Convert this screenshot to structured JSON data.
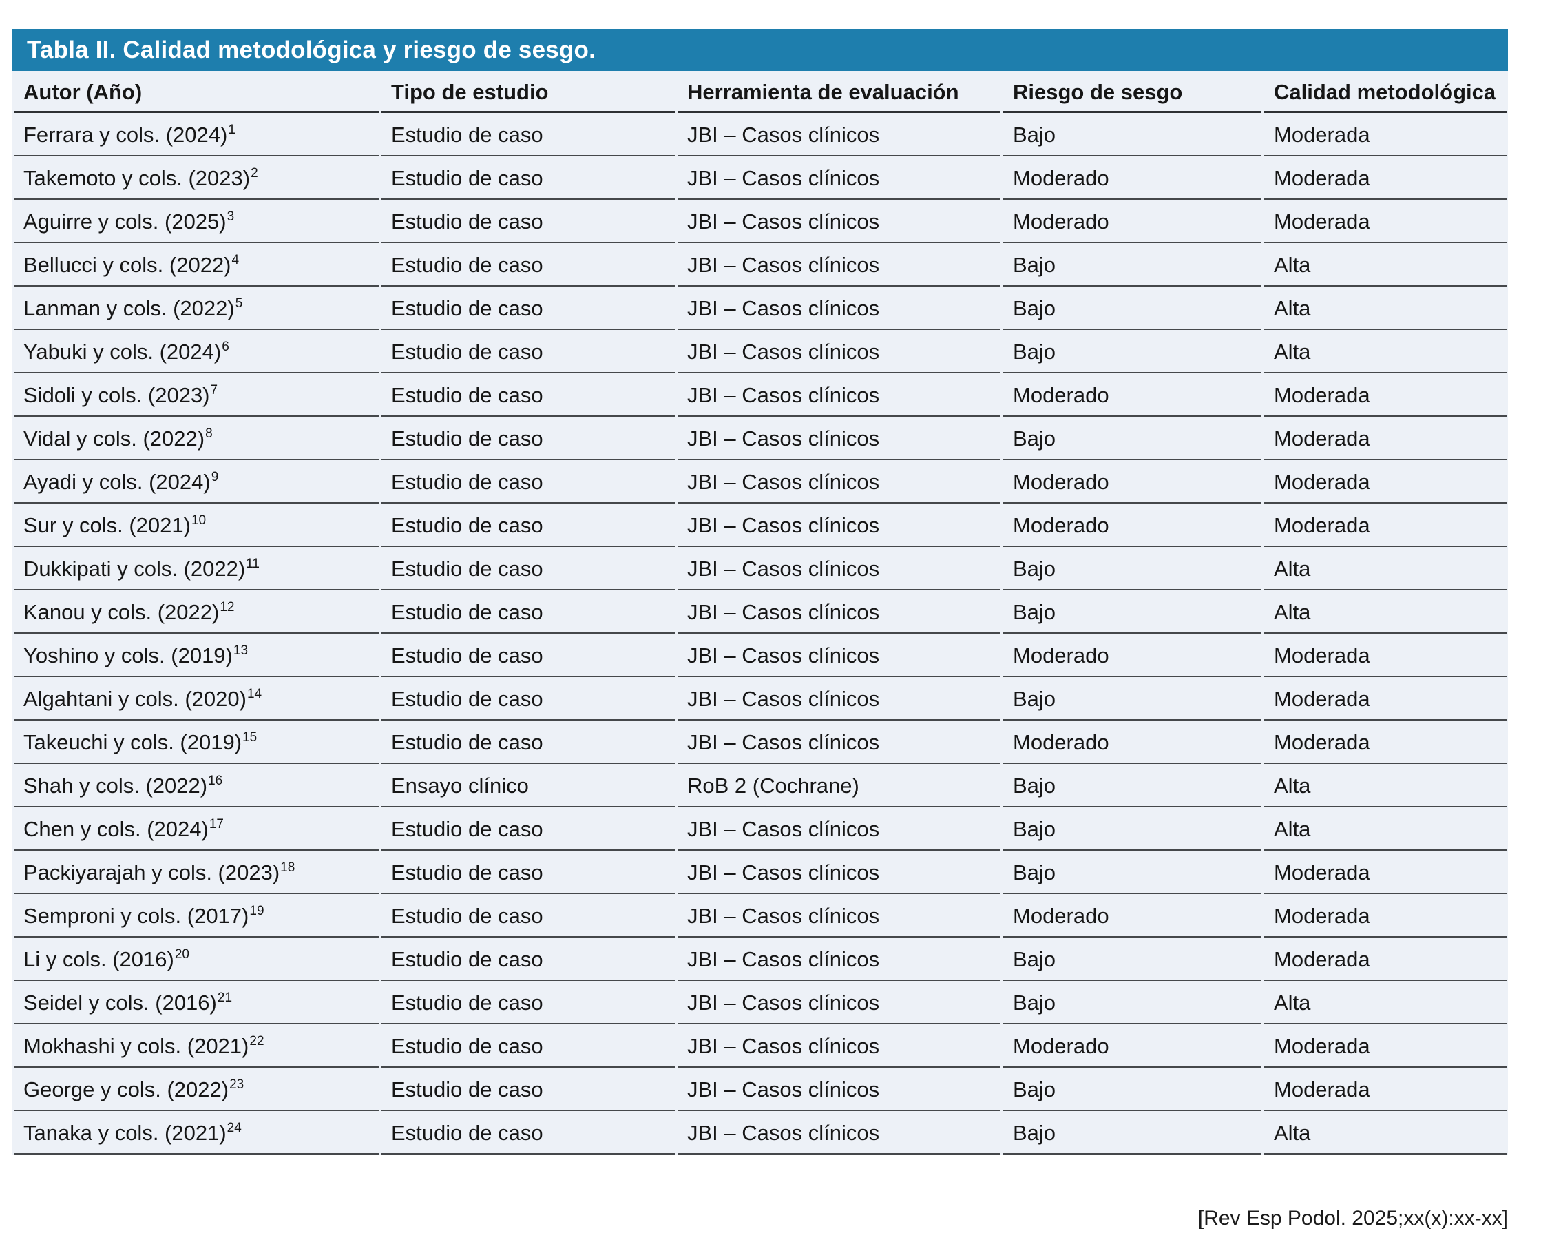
{
  "table": {
    "title": "Tabla II. Calidad metodológica y riesgo de sesgo.",
    "columns": [
      "Autor (Año)",
      "Tipo de estudio",
      "Herramienta de evaluación",
      "Riesgo de sesgo",
      "Calidad metodológica"
    ],
    "rows": [
      {
        "autor": "Ferrara y cols. (2024)",
        "ref": "1",
        "tipo": "Estudio de caso",
        "herramienta": "JBI – Casos clínicos",
        "riesgo": "Bajo",
        "calidad": "Moderada"
      },
      {
        "autor": "Takemoto y cols. (2023)",
        "ref": "2",
        "tipo": "Estudio de caso",
        "herramienta": "JBI – Casos clínicos",
        "riesgo": "Moderado",
        "calidad": "Moderada"
      },
      {
        "autor": "Aguirre y cols. (2025)",
        "ref": "3",
        "tipo": "Estudio de caso",
        "herramienta": "JBI – Casos clínicos",
        "riesgo": "Moderado",
        "calidad": "Moderada"
      },
      {
        "autor": "Bellucci y cols. (2022)",
        "ref": "4",
        "tipo": "Estudio de caso",
        "herramienta": "JBI – Casos clínicos",
        "riesgo": "Bajo",
        "calidad": "Alta"
      },
      {
        "autor": "Lanman y cols. (2022)",
        "ref": "5",
        "tipo": "Estudio de caso",
        "herramienta": "JBI – Casos clínicos",
        "riesgo": "Bajo",
        "calidad": "Alta"
      },
      {
        "autor": "Yabuki y cols. (2024)",
        "ref": "6",
        "tipo": "Estudio de caso",
        "herramienta": "JBI – Casos clínicos",
        "riesgo": "Bajo",
        "calidad": "Alta"
      },
      {
        "autor": "Sidoli y cols. (2023)",
        "ref": "7",
        "tipo": "Estudio de caso",
        "herramienta": "JBI – Casos clínicos",
        "riesgo": "Moderado",
        "calidad": "Moderada"
      },
      {
        "autor": "Vidal y cols. (2022)",
        "ref": "8",
        "tipo": "Estudio de caso",
        "herramienta": "JBI – Casos clínicos",
        "riesgo": "Bajo",
        "calidad": "Moderada"
      },
      {
        "autor": "Ayadi y cols. (2024)",
        "ref": "9",
        "tipo": "Estudio de caso",
        "herramienta": "JBI – Casos clínicos",
        "riesgo": "Moderado",
        "calidad": "Moderada"
      },
      {
        "autor": "Sur y cols. (2021)",
        "ref": "10",
        "tipo": "Estudio de caso",
        "herramienta": "JBI – Casos clínicos",
        "riesgo": "Moderado",
        "calidad": "Moderada"
      },
      {
        "autor": "Dukkipati y cols. (2022)",
        "ref": "11",
        "tipo": "Estudio de caso",
        "herramienta": "JBI – Casos clínicos",
        "riesgo": "Bajo",
        "calidad": "Alta"
      },
      {
        "autor": "Kanou y cols. (2022)",
        "ref": "12",
        "tipo": "Estudio de caso",
        "herramienta": "JBI – Casos clínicos",
        "riesgo": "Bajo",
        "calidad": "Alta"
      },
      {
        "autor": "Yoshino y cols. (2019)",
        "ref": "13",
        "tipo": "Estudio de caso",
        "herramienta": "JBI – Casos clínicos",
        "riesgo": "Moderado",
        "calidad": "Moderada"
      },
      {
        "autor": "Algahtani y cols. (2020)",
        "ref": "14",
        "tipo": "Estudio de caso",
        "herramienta": "JBI – Casos clínicos",
        "riesgo": "Bajo",
        "calidad": "Moderada"
      },
      {
        "autor": "Takeuchi y cols. (2019)",
        "ref": "15",
        "tipo": "Estudio de caso",
        "herramienta": "JBI – Casos clínicos",
        "riesgo": "Moderado",
        "calidad": "Moderada"
      },
      {
        "autor": "Shah y cols. (2022)",
        "ref": "16",
        "tipo": "Ensayo clínico",
        "herramienta": "RoB 2 (Cochrane)",
        "riesgo": "Bajo",
        "calidad": "Alta"
      },
      {
        "autor": "Chen y cols. (2024)",
        "ref": "17",
        "tipo": "Estudio de caso",
        "herramienta": "JBI – Casos clínicos",
        "riesgo": "Bajo",
        "calidad": "Alta"
      },
      {
        "autor": "Packiyarajah y cols. (2023)",
        "ref": "18",
        "tipo": "Estudio de caso",
        "herramienta": "JBI – Casos clínicos",
        "riesgo": "Bajo",
        "calidad": "Moderada"
      },
      {
        "autor": "Semproni y cols. (2017)",
        "ref": "19",
        "tipo": "Estudio de caso",
        "herramienta": "JBI – Casos clínicos",
        "riesgo": "Moderado",
        "calidad": "Moderada"
      },
      {
        "autor": "Li y cols. (2016)",
        "ref": "20",
        "tipo": "Estudio de caso",
        "herramienta": "JBI – Casos clínicos",
        "riesgo": "Bajo",
        "calidad": "Moderada"
      },
      {
        "autor": "Seidel y cols. (2016)",
        "ref": "21",
        "tipo": "Estudio de caso",
        "herramienta": "JBI – Casos clínicos",
        "riesgo": "Bajo",
        "calidad": "Alta"
      },
      {
        "autor": "Mokhashi y cols. (2021)",
        "ref": "22",
        "tipo": "Estudio de caso",
        "herramienta": "JBI – Casos clínicos",
        "riesgo": "Moderado",
        "calidad": "Moderada"
      },
      {
        "autor": "George y cols. (2022)",
        "ref": "23",
        "tipo": "Estudio de caso",
        "herramienta": "JBI – Casos clínicos",
        "riesgo": "Bajo",
        "calidad": "Moderada"
      },
      {
        "autor": "Tanaka y cols. (2021)",
        "ref": "24",
        "tipo": "Estudio de caso",
        "herramienta": "JBI – Casos clínicos",
        "riesgo": "Bajo",
        "calidad": "Alta"
      }
    ]
  },
  "footer": {
    "citation": "[Rev Esp Podol. 2025;xx(x):xx-xx]"
  },
  "colors": {
    "title_bar": "#1e7ead",
    "row_background": "#edf1f7",
    "separator_line": "#45484b",
    "text": "#161616"
  }
}
